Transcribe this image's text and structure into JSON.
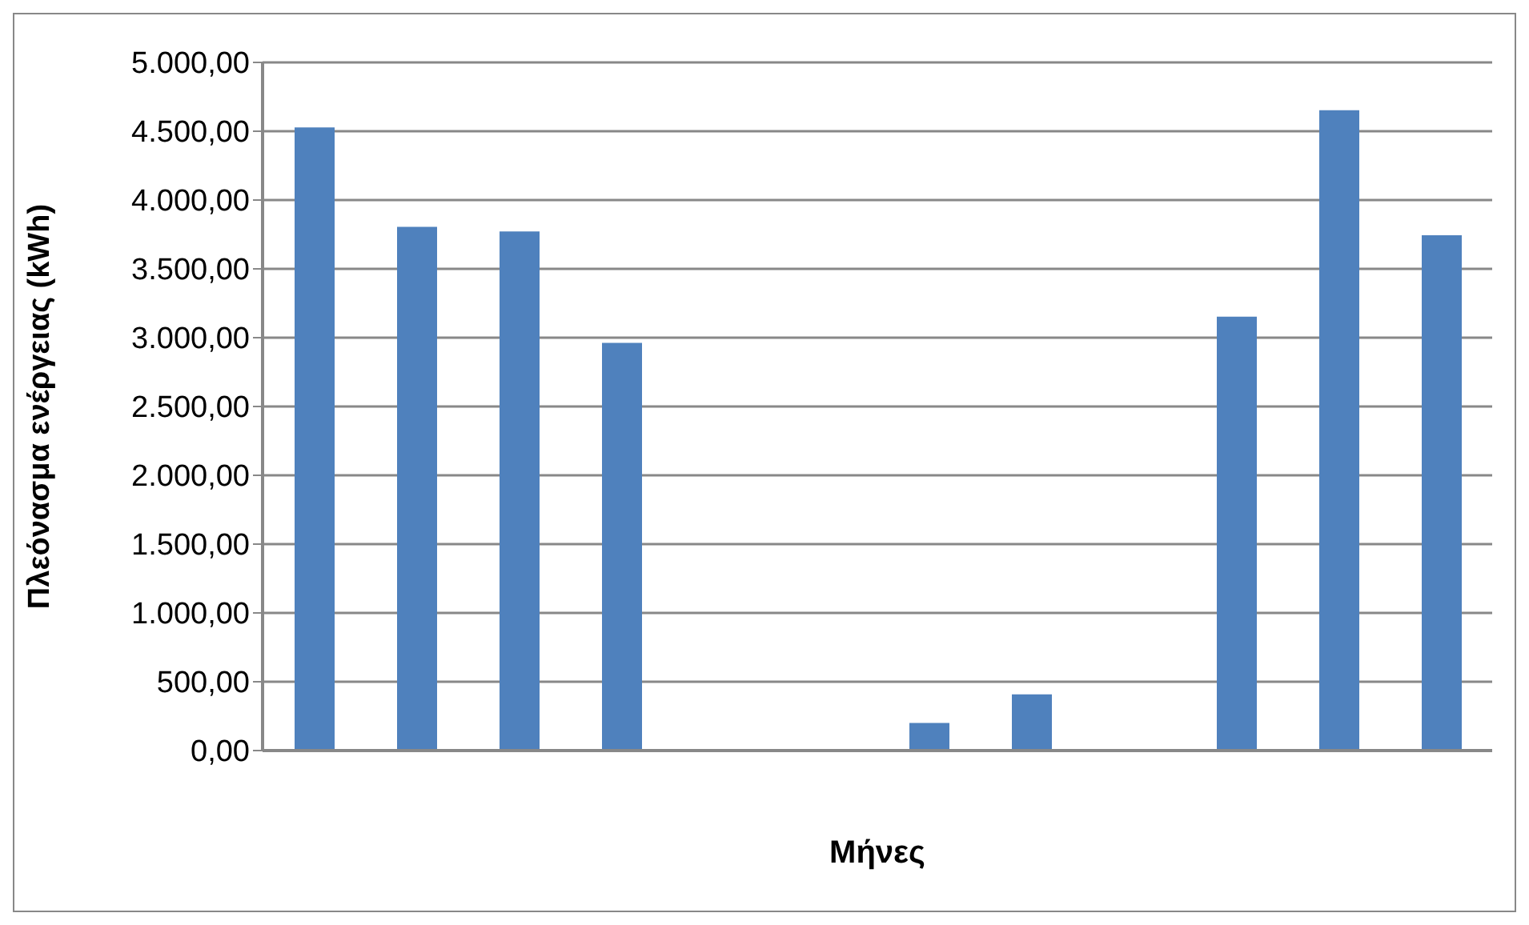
{
  "chart_data": {
    "type": "bar",
    "xlabel": "Μήνες",
    "ylabel": "Πλεόνασμα ενέργειας (kWh)",
    "categories": [
      null,
      null,
      null,
      null,
      null,
      null,
      null,
      null,
      null,
      null,
      null,
      null
    ],
    "values": [
      4527,
      3805,
      3772,
      2962,
      0,
      0,
      201,
      408,
      0,
      3152,
      4652,
      3744
    ],
    "color": "#4f81bd",
    "ylim": [
      0,
      5000
    ],
    "yticks": [
      {
        "value": 0,
        "label": "0,00"
      },
      {
        "value": 500,
        "label": "500,00"
      },
      {
        "value": 1000,
        "label": "1.000,00"
      },
      {
        "value": 1500,
        "label": "1.500,00"
      },
      {
        "value": 2000,
        "label": "2.000,00"
      },
      {
        "value": 2500,
        "label": "2.500,00"
      },
      {
        "value": 3000,
        "label": "3.000,00"
      },
      {
        "value": 3500,
        "label": "3.500,00"
      },
      {
        "value": 4000,
        "label": "4.000,00"
      },
      {
        "value": 4500,
        "label": "4.500,00"
      },
      {
        "value": 5000,
        "label": "5.000,00"
      }
    ],
    "grid": "y"
  }
}
